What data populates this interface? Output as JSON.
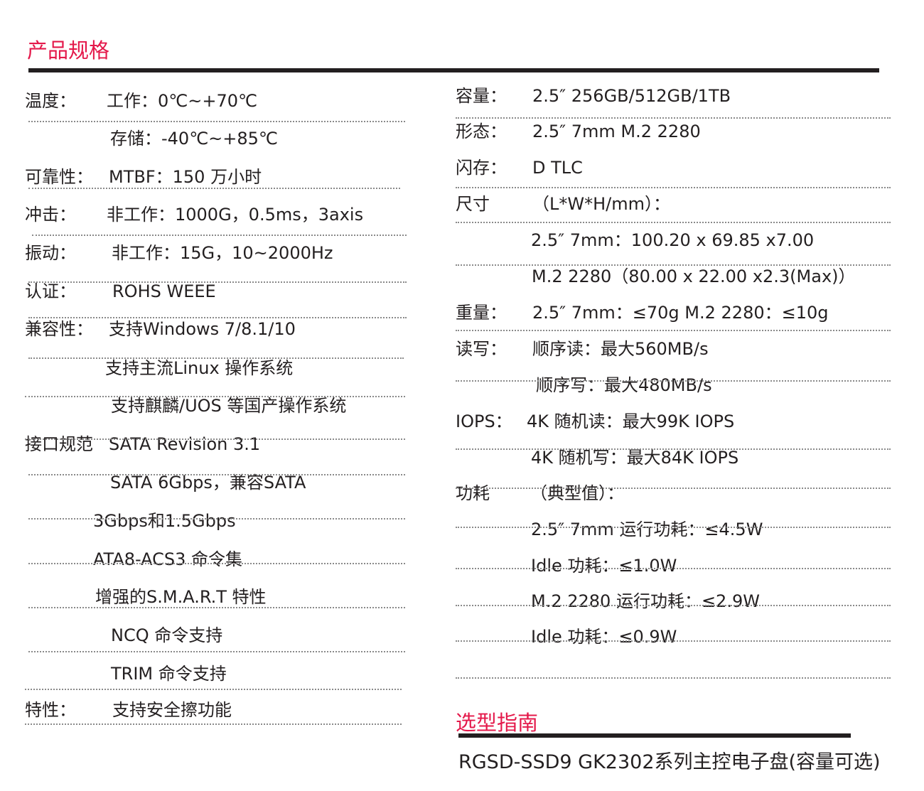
{
  "section_title": "产品规格",
  "left": [
    {
      "label": "温度：",
      "value": "工作：0℃~+70℃"
    },
    {
      "label": "",
      "value": "存储：-40℃~+85℃"
    },
    {
      "label": "可靠性：",
      "value": "MTBF：150 万小时"
    },
    {
      "label": "冲击：",
      "value": "非工作：1000G，0.5ms，3axis"
    },
    {
      "label": "振动：",
      "value": "非工作：15G，10~2000Hz"
    },
    {
      "label": "认证：",
      "value": "ROHS   WEEE"
    },
    {
      "label": "兼容性：",
      "value": "支持Windows 7/8.1/10"
    },
    {
      "label": "",
      "value": "支持主流Linux 操作系统"
    },
    {
      "label": "",
      "value": "支持麒麟/UOS 等国产操作系统"
    },
    {
      "label": "接口规范",
      "value": "SATA Revision 3.1"
    },
    {
      "label": "",
      "value": "SATA 6Gbps，兼容SATA"
    },
    {
      "label": "",
      "value": "3Gbps和1.5Gbps"
    },
    {
      "label": "",
      "value": "ATA8-ACS3 命令集"
    },
    {
      "label": "",
      "value": "增强的S.M.A.R.T 特性"
    },
    {
      "label": "",
      "value": "NCQ 命令支持"
    },
    {
      "label": "",
      "value": "TRIM 命令支持"
    },
    {
      "label": "特性：",
      "value": "支持安全擦功能"
    }
  ],
  "right": [
    {
      "label": "容量：",
      "value": "2.5″  256GB/512GB/1TB"
    },
    {
      "label": "形态：",
      "value": "2.5″  7mm    M.2 2280"
    },
    {
      "label": "闪存：",
      "value": "D TLC"
    },
    {
      "label": "尺寸",
      "value": "（L*W*H/mm）："
    },
    {
      "label": "",
      "value": "2.5″  7mm：100.20 x 69.85 x7.00"
    },
    {
      "label": "",
      "value": "M.2 2280（80.00 x 22.00 x2.3(Max)）"
    },
    {
      "label": "重量：",
      "value": "2.5″  7mm：≤70g  M.2 2280：≤10g"
    },
    {
      "label": "读写：",
      "value": "顺序读：最大560MB/s"
    },
    {
      "label": "",
      "value": "顺序写：最大480MB/s"
    },
    {
      "label": "IOPS：",
      "value": "4K 随机读：最大99K IOPS"
    },
    {
      "label": "",
      "value": "4K 随机写：最大84K IOPS"
    },
    {
      "label": "功耗",
      "value": "（典型值）："
    },
    {
      "label": "",
      "value": "2.5″  7mm  运行功耗：≤4.5W"
    },
    {
      "label": "",
      "value": "Idle 功耗：≤1.0W"
    },
    {
      "label": "",
      "value": "M.2 2280   运行功耗：≤2.9W"
    },
    {
      "label": "",
      "value": "Idle 功耗：≤0.9W"
    }
  ],
  "guide_title": "选型指南",
  "guide_text": "RGSD-SSD9  GK2302系列主控电子盘(容量可选)",
  "colors": {
    "accent": "#e4184a",
    "text": "#231f20"
  }
}
